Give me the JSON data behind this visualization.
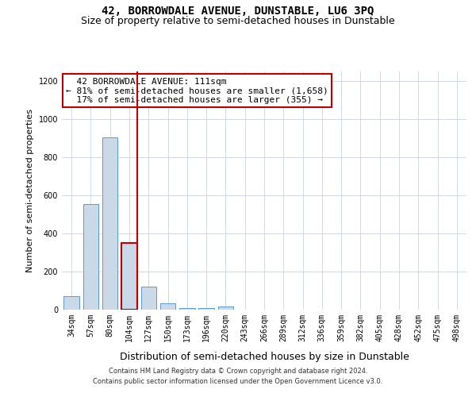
{
  "title": "42, BORROWDALE AVENUE, DUNSTABLE, LU6 3PQ",
  "subtitle": "Size of property relative to semi-detached houses in Dunstable",
  "xlabel": "Distribution of semi-detached houses by size in Dunstable",
  "ylabel": "Number of semi-detached properties",
  "categories": [
    "34sqm",
    "57sqm",
    "80sqm",
    "104sqm",
    "127sqm",
    "150sqm",
    "173sqm",
    "196sqm",
    "220sqm",
    "243sqm",
    "266sqm",
    "289sqm",
    "312sqm",
    "336sqm",
    "359sqm",
    "382sqm",
    "405sqm",
    "428sqm",
    "452sqm",
    "475sqm",
    "498sqm"
  ],
  "values": [
    70,
    555,
    905,
    348,
    120,
    35,
    10,
    10,
    15,
    0,
    0,
    0,
    0,
    0,
    0,
    0,
    0,
    0,
    0,
    0,
    0
  ],
  "bar_color": "#c9d9e8",
  "bar_edge_color": "#5b9bd5",
  "highlight_bar_index": 3,
  "highlight_bar_edge_color": "#c00000",
  "ylim": [
    0,
    1250
  ],
  "yticks": [
    0,
    200,
    400,
    600,
    800,
    1000,
    1200
  ],
  "annotation_line1": "  42 BORROWDALE AVENUE: 111sqm",
  "annotation_line2": "← 81% of semi-detached houses are smaller (1,658)",
  "annotation_line3": "  17% of semi-detached houses are larger (355) →",
  "annotation_box_color": "#ffffff",
  "annotation_box_edge_color": "#c00000",
  "footer_line1": "Contains HM Land Registry data © Crown copyright and database right 2024.",
  "footer_line2": "Contains public sector information licensed under the Open Government Licence v3.0.",
  "background_color": "#ffffff",
  "grid_color": "#d0d8e8",
  "title_fontsize": 10,
  "subtitle_fontsize": 9,
  "xlabel_fontsize": 9,
  "tick_fontsize": 7,
  "ylabel_fontsize": 8,
  "annotation_fontsize": 8,
  "footer_fontsize": 6,
  "red_line_x": 3.4
}
